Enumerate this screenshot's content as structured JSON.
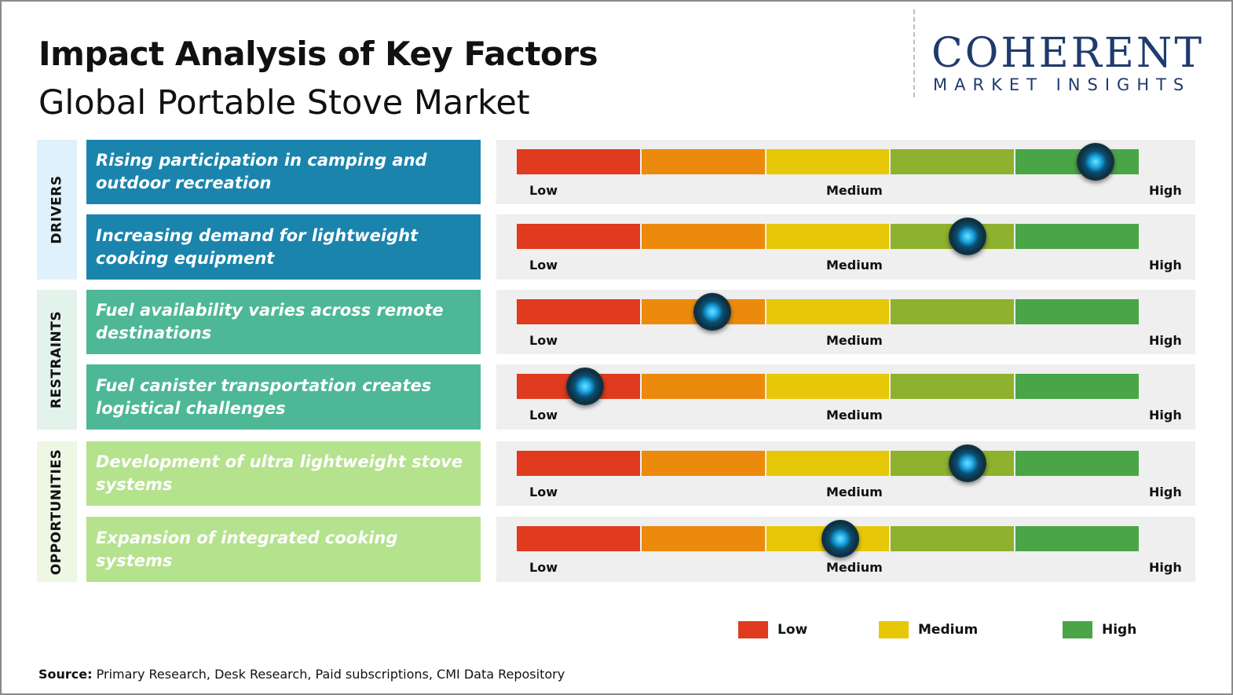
{
  "header": {
    "title": "Impact Analysis of Key Factors",
    "subtitle": "Global Portable Stove Market"
  },
  "logo": {
    "word": "COHERENT",
    "tagline": "MARKET INSIGHTS",
    "color": "#1f3b6e"
  },
  "scale": {
    "low": "Low",
    "medium": "Medium",
    "high": "High",
    "segment_colors": [
      "#e03a1f",
      "#ec8a0e",
      "#e6c809",
      "#8eb12e",
      "#4aa546"
    ]
  },
  "groups": [
    {
      "label": "DRIVERS",
      "color": "#dff1fb"
    },
    {
      "label": "RESTRAINTS",
      "color": "#e3f3ec"
    },
    {
      "label": "OPPORTUNITIES",
      "color": "#edf7e4"
    }
  ],
  "chart_data": {
    "type": "table",
    "scale_range": [
      0,
      1
    ],
    "rows": [
      {
        "group": "DRIVERS",
        "factor": "Rising participation in camping and outdoor recreation",
        "impact": 0.93,
        "color": "#1a84ad"
      },
      {
        "group": "DRIVERS",
        "factor": "Increasing demand for lightweight cooking equipment",
        "impact": 0.725,
        "color": "#1a84ad"
      },
      {
        "group": "RESTRAINTS",
        "factor": "Fuel availability varies across remote destinations",
        "impact": 0.315,
        "color": "#4db796"
      },
      {
        "group": "RESTRAINTS",
        "factor": "Fuel canister transportation creates logistical challenges",
        "impact": 0.11,
        "color": "#4db796"
      },
      {
        "group": "OPPORTUNITIES",
        "factor": "Development of ultra lightweight stove systems",
        "impact": 0.725,
        "color": "#b4e28d"
      },
      {
        "group": "OPPORTUNITIES",
        "factor": "Expansion of integrated cooking systems",
        "impact": 0.52,
        "color": "#b4e28d"
      }
    ]
  },
  "legend": [
    {
      "label": "Low",
      "color": "#e03a1f"
    },
    {
      "label": "Medium",
      "color": "#e6c809"
    },
    {
      "label": "High",
      "color": "#4aa546"
    }
  ],
  "source": {
    "prefix": "Source:",
    "text": " Primary Research, Desk Research, Paid subscriptions, CMI Data Repository"
  }
}
